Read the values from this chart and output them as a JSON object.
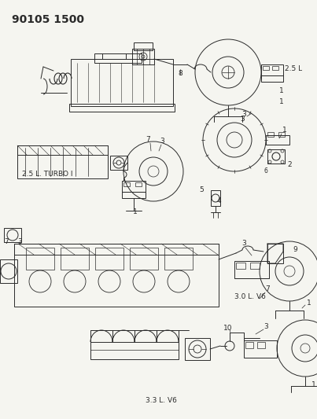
{
  "title": "90105 1500",
  "bg": "#f5f5f0",
  "fg": "#2a2a2a",
  "figsize": [
    4.03,
    5.33
  ],
  "dpi": 100,
  "sections": {
    "top_label": "2.5 L",
    "turbo_label": "2.5 L. TURBO I",
    "v6_30_label": "3.0 L. V6",
    "v6_33_label": "3.3 L. V6"
  }
}
